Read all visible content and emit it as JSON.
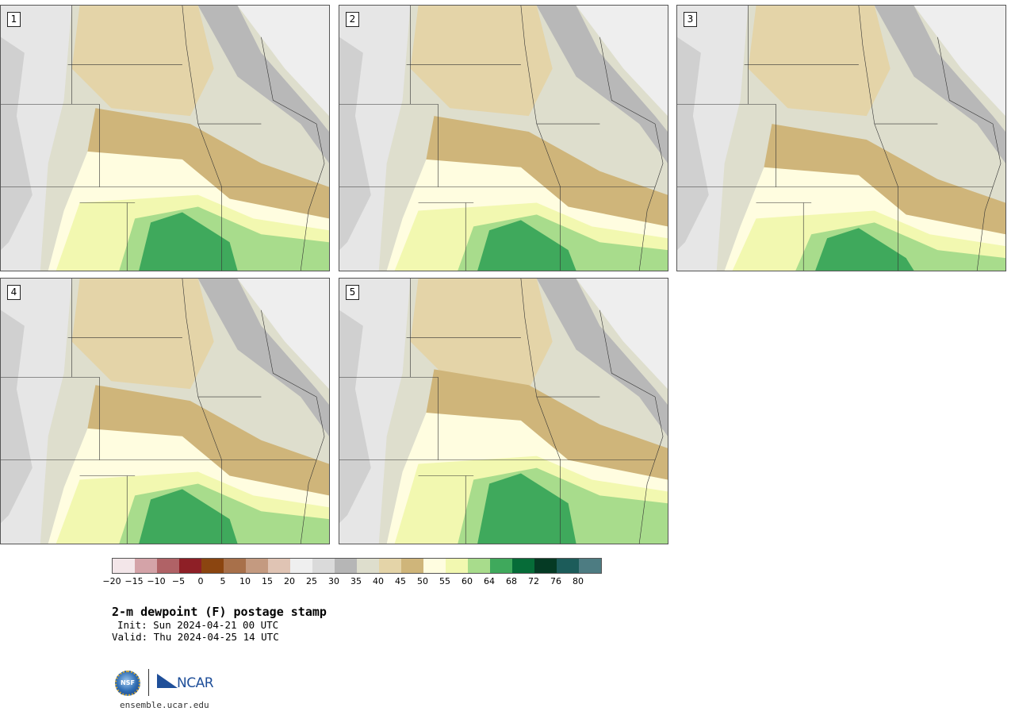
{
  "panels": [
    {
      "label": "1"
    },
    {
      "label": "2"
    },
    {
      "label": "3"
    },
    {
      "label": "4"
    },
    {
      "label": "5"
    }
  ],
  "colorbar": {
    "colors": [
      "#f3e6e9",
      "#d4a3a8",
      "#b06266",
      "#8e1f26",
      "#8b4510",
      "#a8704a",
      "#c49a80",
      "#e0c4b4",
      "#efefef",
      "#dadada",
      "#b6b6b6",
      "#dedecd",
      "#e4d4a8",
      "#cfb57a",
      "#fffde0",
      "#f2f8b0",
      "#a8dc8c",
      "#3fa95c",
      "#066c38",
      "#053a24",
      "#1c5c5a",
      "#4d7c82"
    ],
    "ticks": [
      "−20",
      "−15",
      "−10",
      "−5",
      "0",
      "5",
      "10",
      "15",
      "20",
      "25",
      "30",
      "35",
      "40",
      "45",
      "50",
      "55",
      "60",
      "64",
      "68",
      "72",
      "76",
      "80"
    ]
  },
  "title": "2-m dewpoint (F) postage stamp",
  "init": "Init: Sun 2024-04-21 00 UTC",
  "valid": "Valid: Thu 2024-04-25 14 UTC",
  "logos": {
    "nsf": "NSF",
    "ncar": "NCAR"
  },
  "site": "ensemble.ucar.edu"
}
